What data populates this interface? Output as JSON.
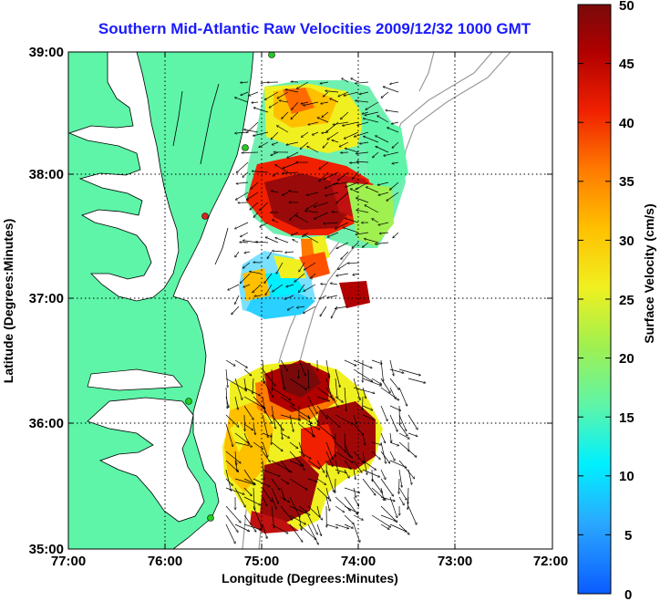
{
  "title": "Southern Mid-Atlantic Raw Velocities 2009/12/32 1000 GMT",
  "xlabel": "Longitude (Degrees:Minutes)",
  "ylabel": "Latitude (Degrees:Minutes)",
  "colorbar_label": "Surface Velocity (cm/s)",
  "x_ticks": [
    "77:00",
    "76:00",
    "75:00",
    "74:00",
    "73:00",
    "72:00"
  ],
  "y_ticks": [
    "39:00",
    "38:00",
    "37:00",
    "36:00",
    "35:00"
  ],
  "colorbar_ticks": [
    "50",
    "45",
    "40",
    "35",
    "30",
    "25",
    "20",
    "15",
    "10",
    "5",
    "0"
  ],
  "colors": {
    "land": "#5ef5a8",
    "title": "#1a1aff",
    "coast": "#000000",
    "bathymetry": "#9a9a9a",
    "station": "#22cc22",
    "station_alert": "#dd2222"
  },
  "chart_data": {
    "type": "heatmap",
    "title": "Southern Mid-Atlantic Raw Velocities 2009/12/32 1000 GMT",
    "xlabel": "Longitude (Degrees:Minutes)",
    "ylabel": "Latitude (Degrees:Minutes)",
    "xlim": [
      "77:00",
      "72:00"
    ],
    "ylim": [
      "35:00",
      "39:00"
    ],
    "color_scale": {
      "label": "Surface Velocity (cm/s)",
      "min": 0,
      "max": 50,
      "colormap": "jet"
    },
    "grid": true,
    "legend": "right colorbar"
  }
}
